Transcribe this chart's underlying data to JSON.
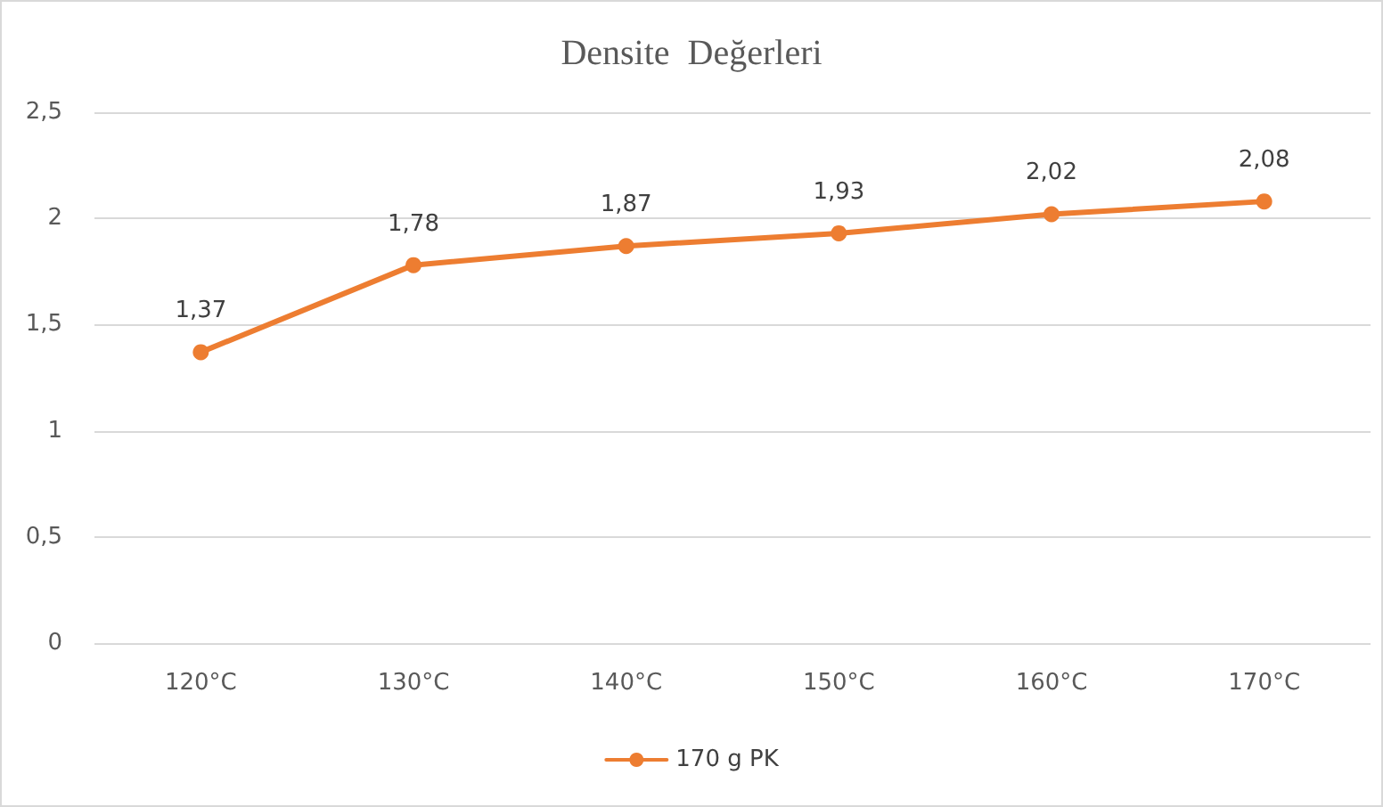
{
  "chart_data": {
    "type": "line",
    "title": "Densite  Değerleri",
    "categories": [
      "120°C",
      "130°C",
      "140°C",
      "150°C",
      "160°C",
      "170°C"
    ],
    "series": [
      {
        "name": "170 g PK",
        "color": "#ed7d31",
        "values": [
          1.37,
          1.78,
          1.87,
          1.93,
          2.02,
          2.08
        ],
        "value_labels": [
          "1,37",
          "1,78",
          "1,87",
          "1,93",
          "2,02",
          "2,08"
        ]
      }
    ],
    "ylim": [
      0,
      2.5
    ],
    "yticks": [
      {
        "value": 0,
        "label": "0"
      },
      {
        "value": 0.5,
        "label": "0,5"
      },
      {
        "value": 1,
        "label": "1"
      },
      {
        "value": 1.5,
        "label": "1,5"
      },
      {
        "value": 2,
        "label": "2"
      },
      {
        "value": 2.5,
        "label": "2,5"
      }
    ],
    "grid": "y",
    "legend": "bottom",
    "marker": "circle",
    "line_style": "solid"
  }
}
